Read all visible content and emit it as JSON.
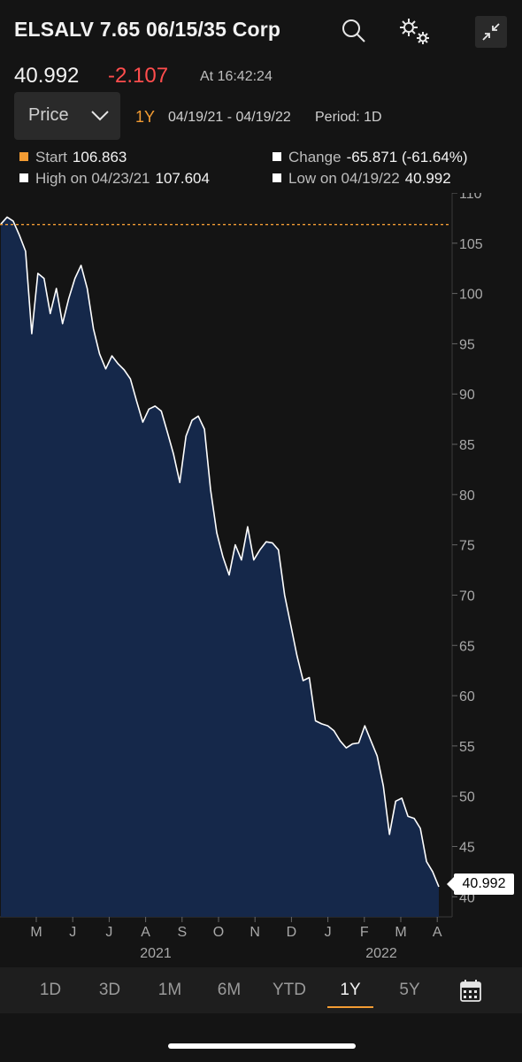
{
  "header": {
    "title": "ELSALV 7.65 06/15/35 Corp",
    "icons": [
      "search-icon",
      "settings-icon",
      "collapse-icon"
    ]
  },
  "quote": {
    "last": "40.992",
    "change": "-2.107",
    "time": "At 16:42:24"
  },
  "controls": {
    "price_label": "Price",
    "range_label": "1Y",
    "date_range": "04/19/21 - 04/19/22",
    "period": "Period: 1D"
  },
  "stats": {
    "start_label": "Start",
    "start_value": "106.863",
    "change_label": "Change",
    "change_value": "-65.871 (-61.64%)",
    "high_label": "High on 04/23/21",
    "high_value": "107.604",
    "low_label": "Low on 04/19/22",
    "low_value": "40.992"
  },
  "colors": {
    "accent": "#f39c33",
    "down": "#ff4d4d",
    "area_fill": "#15284a",
    "line": "#ffffff"
  },
  "chart_data": {
    "type": "area",
    "x_tick_labels": [
      "M",
      "J",
      "J",
      "A",
      "S",
      "O",
      "N",
      "D",
      "J",
      "F",
      "M",
      "A"
    ],
    "year_labels": [
      "2021",
      "2022"
    ],
    "y_ticks": [
      40,
      45,
      50,
      55,
      60,
      65,
      70,
      75,
      80,
      85,
      90,
      95,
      100,
      105,
      110
    ],
    "ylim": [
      38,
      110
    ],
    "start_reference": 106.863,
    "last_value_label": "40.992",
    "values": [
      106.9,
      107.6,
      107.2,
      105.8,
      104.2,
      96.0,
      102.0,
      101.5,
      98.0,
      100.5,
      97.0,
      99.5,
      101.5,
      102.8,
      100.5,
      96.5,
      94.0,
      92.5,
      93.8,
      93.0,
      92.4,
      91.5,
      89.3,
      87.2,
      88.5,
      88.8,
      88.3,
      86.2,
      84.0,
      81.2,
      85.8,
      87.4,
      87.8,
      86.5,
      80.5,
      76.2,
      73.8,
      72.0,
      75.0,
      73.5,
      76.8,
      73.5,
      74.5,
      75.3,
      75.2,
      74.5,
      70.0,
      67.0,
      64.0,
      61.5,
      61.8,
      57.5,
      57.2,
      57.0,
      56.5,
      55.5,
      54.8,
      55.2,
      55.3,
      57.0,
      55.5,
      54.0,
      51.0,
      46.2,
      49.5,
      49.8,
      48.0,
      47.8,
      46.8,
      43.5,
      42.5,
      40.992
    ]
  },
  "tabs": [
    "1D",
    "3D",
    "1M",
    "6M",
    "YTD",
    "1Y",
    "5Y"
  ],
  "active_tab": "1Y",
  "calendar_icon": "calendar-icon"
}
